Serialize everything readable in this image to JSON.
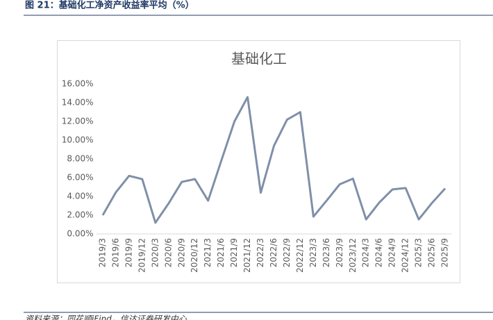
{
  "header": {
    "title": "图 21：基础化工净资产收益率平均（%）"
  },
  "footer": {
    "source": "资料来源：同花顺iFind，信达证券研发中心"
  },
  "chart_data": {
    "type": "line",
    "title": "基础化工",
    "categories": [
      "2019/3",
      "2019/6",
      "2019/9",
      "2019/12",
      "2020/3",
      "2020/6",
      "2020/9",
      "2020/12",
      "2021/3",
      "2021/6",
      "2021/9",
      "2021/12",
      "2022/3",
      "2022/6",
      "2022/9",
      "2022/12",
      "2023/3",
      "2023/6",
      "2023/9",
      "2023/12",
      "2024/3",
      "2024/6",
      "2024/9",
      "2024/12",
      "2025/3",
      "2025/6",
      "2025/9"
    ],
    "values": [
      2.0,
      4.45,
      6.2,
      5.85,
      1.2,
      3.25,
      5.55,
      5.85,
      3.55,
      7.8,
      12.0,
      14.6,
      4.4,
      9.4,
      12.2,
      13.0,
      1.85,
      3.55,
      5.3,
      5.9,
      1.55,
      3.35,
      4.75,
      4.9,
      1.55,
      3.3,
      4.85
    ],
    "color": "#7f8fa9",
    "ylim": [
      0,
      16
    ],
    "yticks": [
      {
        "value": 0,
        "label": "0.00%"
      },
      {
        "value": 2,
        "label": "2.00%"
      },
      {
        "value": 4,
        "label": "4.00%"
      },
      {
        "value": 6,
        "label": "6.00%"
      },
      {
        "value": 8,
        "label": "8.00%"
      },
      {
        "value": 10,
        "label": "10.00%"
      },
      {
        "value": 12,
        "label": "12.00%"
      },
      {
        "value": 14,
        "label": "14.00%"
      },
      {
        "value": 16,
        "label": "16.00%"
      }
    ],
    "grid": false
  }
}
